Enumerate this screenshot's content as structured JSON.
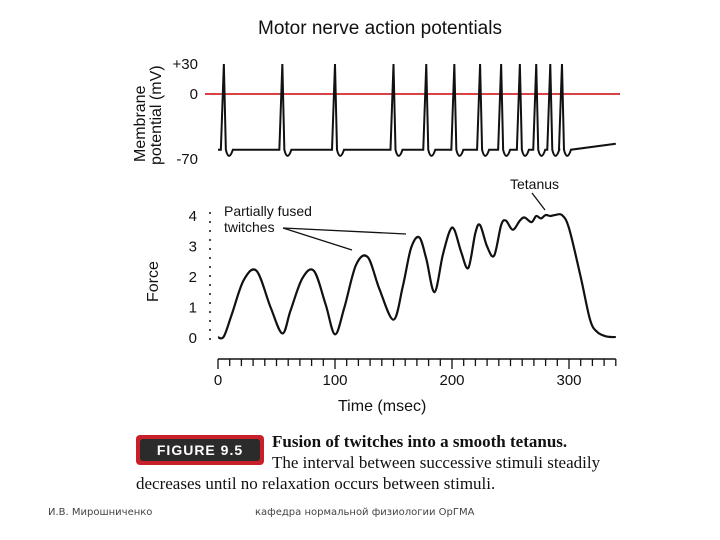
{
  "chart_data": [
    {
      "type": "line",
      "title": "Motor nerve action potentials",
      "ylabel_line1": "Membrane",
      "ylabel_line2": "potential (mV)",
      "yticks": [
        "+30",
        "0",
        "-70"
      ],
      "ylim": [
        -70,
        30
      ],
      "reference_line": {
        "y": 0,
        "color": "#d62728"
      },
      "series": [
        {
          "spike_times_msec": [
            5,
            55,
            100,
            150,
            178,
            202,
            224,
            242,
            258,
            272,
            284,
            294
          ],
          "peak": 30,
          "rest": -70
        }
      ],
      "annotation": "Tetanus"
    },
    {
      "type": "line",
      "ylabel": "Force",
      "xlabel": "Time (msec)",
      "yticks": [
        "4",
        "3",
        "2",
        "1",
        "0"
      ],
      "xticks": [
        "0",
        "100",
        "200",
        "300"
      ],
      "ylim": [
        0,
        4
      ],
      "xlim": [
        0,
        340
      ],
      "series": [
        {
          "x": [
            0,
            5,
            12,
            22,
            33,
            45,
            55,
            62,
            72,
            82,
            92,
            100,
            108,
            118,
            128,
            138,
            150,
            158,
            165,
            172,
            178,
            185,
            192,
            198,
            202,
            208,
            214,
            220,
            224,
            230,
            236,
            242,
            246,
            252,
            258,
            262,
            268,
            272,
            276,
            280,
            284,
            288,
            294,
            300,
            310,
            318,
            324,
            332,
            340
          ],
          "y": [
            0.02,
            0.05,
            0.8,
            1.9,
            2.2,
            1.0,
            0.15,
            0.9,
            1.95,
            2.2,
            1.1,
            0.12,
            1.0,
            2.4,
            2.65,
            1.6,
            0.6,
            1.7,
            2.95,
            3.3,
            2.6,
            1.5,
            2.7,
            3.5,
            3.55,
            2.8,
            2.3,
            3.45,
            3.7,
            3.0,
            2.7,
            3.7,
            3.85,
            3.55,
            3.85,
            3.95,
            3.8,
            4.0,
            3.92,
            4.03,
            4.0,
            4.03,
            4.03,
            3.6,
            2.0,
            0.6,
            0.2,
            0.05,
            0.03
          ]
        }
      ],
      "annotation": [
        "Partially fused",
        "twitches"
      ]
    }
  ],
  "caption": {
    "badge": "FIGURE 9.5",
    "line1": "Fusion of twitches into a smooth tetanus.",
    "line2": "The interval between successive stimuli steadily",
    "line3": "decreases until no relaxation occurs between stimuli."
  },
  "footer": {
    "left": "И.В. Мирошниченко",
    "center": "кафедра нормальной физиологии ОрГМА"
  }
}
